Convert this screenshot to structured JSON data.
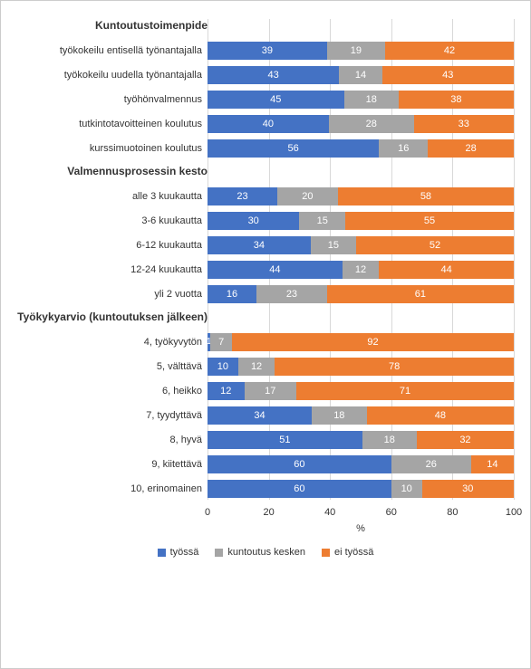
{
  "chart": {
    "type": "stacked-bar-horizontal",
    "background_color": "#ffffff",
    "border_color": "#cccccc",
    "grid_color": "#d9d9d9",
    "label_fontsize": 11,
    "title_fontsize": 12,
    "value_fontsize": 11,
    "value_color": "#ffffff",
    "text_color": "#333333",
    "xlim": [
      0,
      100
    ],
    "xtick_step": 20,
    "xticks": [
      0,
      20,
      40,
      60,
      80,
      100
    ],
    "xlabel": "%",
    "series": [
      {
        "key": "tyossa",
        "label": "työssä",
        "color": "#4472c4"
      },
      {
        "key": "kesken",
        "label": "kuntoutus kesken",
        "color": "#a5a5a5"
      },
      {
        "key": "ei",
        "label": "ei työssä",
        "color": "#ed7d31"
      }
    ],
    "sections": [
      {
        "title": "Kuntoutustoimenpide",
        "rows": [
          {
            "label": "työkokeilu entisellä työnantajalla",
            "values": {
              "tyossa": 39,
              "kesken": 19,
              "ei": 42
            }
          },
          {
            "label": "työkokeilu uudella työnantajalla",
            "values": {
              "tyossa": 43,
              "kesken": 14,
              "ei": 43
            }
          },
          {
            "label": "työhönvalmennus",
            "values": {
              "tyossa": 45,
              "kesken": 18,
              "ei": 38
            }
          },
          {
            "label": "tutkintotavoitteinen koulutus",
            "values": {
              "tyossa": 40,
              "kesken": 28,
              "ei": 33
            }
          },
          {
            "label": "kurssimuotoinen koulutus",
            "values": {
              "tyossa": 56,
              "kesken": 16,
              "ei": 28
            }
          }
        ]
      },
      {
        "title": "Valmennusprosessin kesto",
        "rows": [
          {
            "label": "alle 3 kuukautta",
            "values": {
              "tyossa": 23,
              "kesken": 20,
              "ei": 58
            }
          },
          {
            "label": "3-6 kuukautta",
            "values": {
              "tyossa": 30,
              "kesken": 15,
              "ei": 55
            }
          },
          {
            "label": "6-12 kuukautta",
            "values": {
              "tyossa": 34,
              "kesken": 15,
              "ei": 52
            }
          },
          {
            "label": "12-24 kuukautta",
            "values": {
              "tyossa": 44,
              "kesken": 12,
              "ei": 44
            }
          },
          {
            "label": "yli 2 vuotta",
            "values": {
              "tyossa": 16,
              "kesken": 23,
              "ei": 61
            }
          }
        ]
      },
      {
        "title": "Työkykyarvio (kuntoutuksen jälkeen)",
        "rows": [
          {
            "label": "4, työkyvytön",
            "values": {
              "tyossa": 1,
              "kesken": 7,
              "ei": 92
            }
          },
          {
            "label": "5, välttävä",
            "values": {
              "tyossa": 10,
              "kesken": 12,
              "ei": 78
            }
          },
          {
            "label": "6, heikko",
            "values": {
              "tyossa": 12,
              "kesken": 17,
              "ei": 71
            }
          },
          {
            "label": "7, tyydyttävä",
            "values": {
              "tyossa": 34,
              "kesken": 18,
              "ei": 48
            }
          },
          {
            "label": "8, hyvä",
            "values": {
              "tyossa": 51,
              "kesken": 18,
              "ei": 32
            }
          },
          {
            "label": "9, kiitettävä",
            "values": {
              "tyossa": 60,
              "kesken": 26,
              "ei": 14
            }
          },
          {
            "label": "10, erinomainen",
            "values": {
              "tyossa": 60,
              "kesken": 10,
              "ei": 30
            }
          }
        ]
      }
    ]
  }
}
